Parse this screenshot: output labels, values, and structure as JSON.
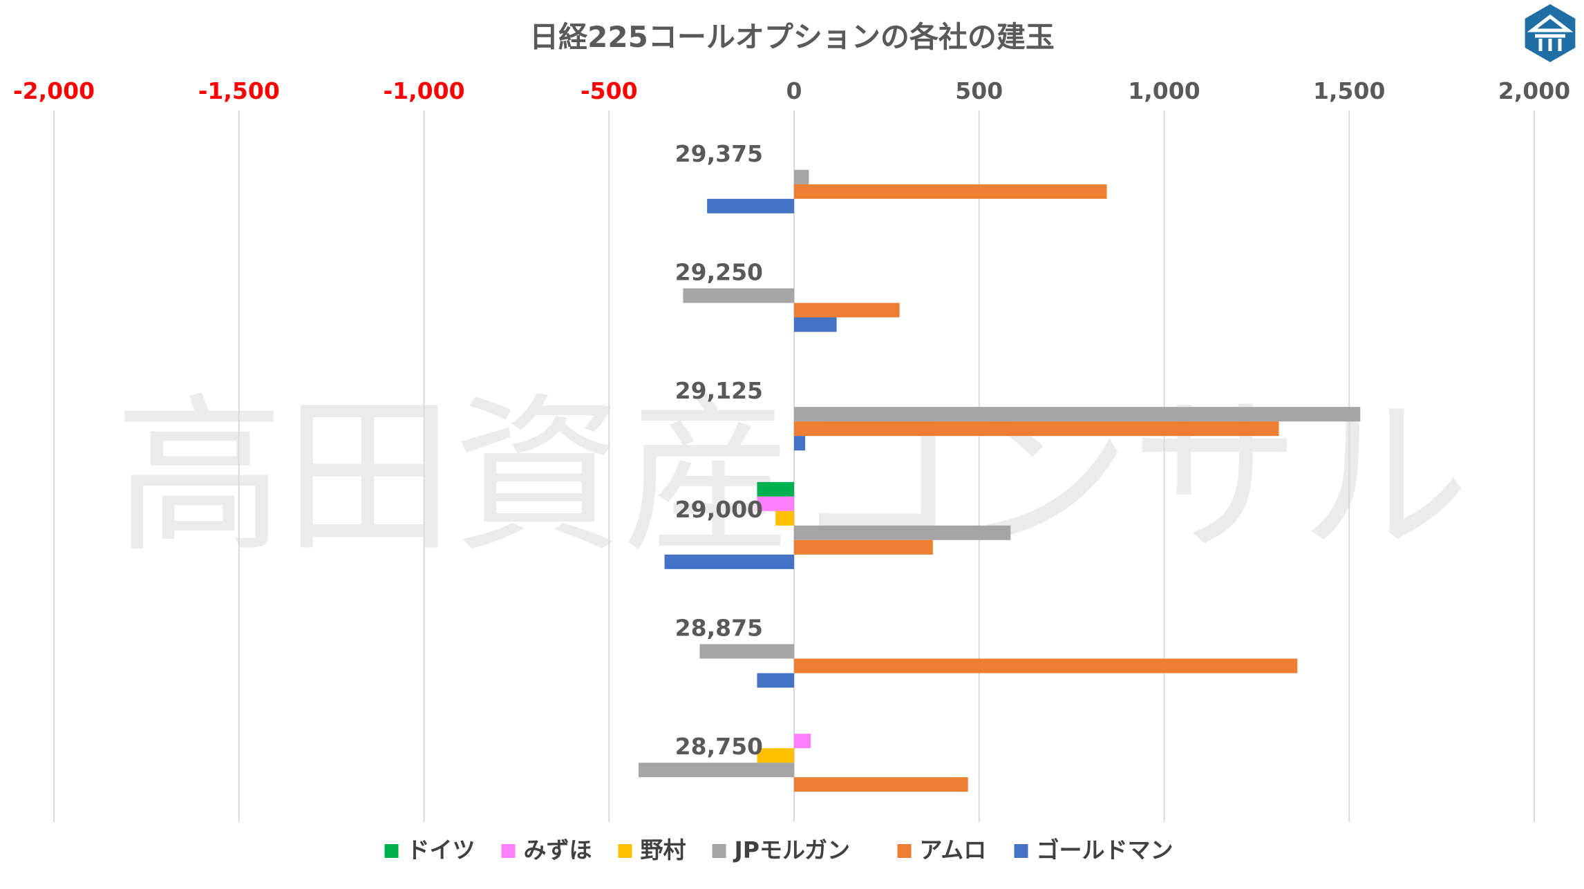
{
  "chart_data": {
    "type": "bar",
    "orientation": "horizontal",
    "title": "日経225コールオプションの各社の建玉",
    "xlim": [
      -2000,
      2000
    ],
    "xticks": [
      -2000,
      -1500,
      -1000,
      -500,
      0,
      500,
      1000,
      1500,
      2000
    ],
    "xtick_labels": [
      "-2,000",
      "-1,500",
      "-1,000",
      "-500",
      "0",
      "500",
      "1,000",
      "1,500",
      "2,000"
    ],
    "negative_tick_color": "#ff0000",
    "positive_tick_color": "#595959",
    "grid": true,
    "legend_position": "bottom",
    "categories": [
      "29,375",
      "29,250",
      "29,125",
      "29,000",
      "28,875",
      "28,750"
    ],
    "series": [
      {
        "name": "ドイツ",
        "color": "#00b050",
        "values": [
          0,
          0,
          0,
          -100,
          0,
          0
        ]
      },
      {
        "name": "みずほ",
        "color": "#ff80ff",
        "values": [
          0,
          0,
          0,
          -100,
          0,
          45
        ]
      },
      {
        "name": "野村",
        "color": "#ffc000",
        "values": [
          0,
          0,
          0,
          -50,
          0,
          -100
        ]
      },
      {
        "name": "JPモルガン",
        "color": "#a5a5a5",
        "values": [
          40,
          -300,
          1530,
          585,
          -255,
          -420
        ]
      },
      {
        "name": "アムロ",
        "color": "#ed7d31",
        "values": [
          845,
          285,
          1310,
          375,
          1360,
          470
        ]
      },
      {
        "name": "ゴールドマン",
        "color": "#4472c4",
        "values": [
          -235,
          115,
          30,
          -350,
          -100,
          0
        ]
      }
    ]
  },
  "watermark": "高田資産コンサル",
  "logo": {
    "name": "takata-logo-icon",
    "color": "#1f6fa6"
  }
}
